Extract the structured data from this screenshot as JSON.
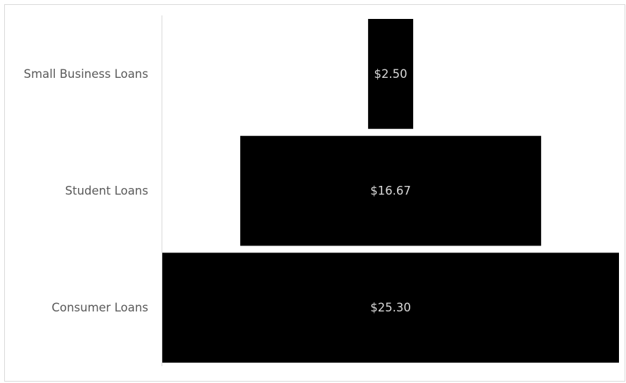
{
  "chart_data": {
    "type": "bar",
    "orientation": "horizontal",
    "style": "funnel",
    "categories": [
      "Small Business Loans",
      "Student Loans",
      "Consumer Loans"
    ],
    "values": [
      2.5,
      16.67,
      25.3
    ],
    "data_labels": [
      "$2.50",
      "$16.67",
      "$25.30"
    ],
    "colors": {
      "bar": "#000000",
      "data_label": "#d9d9d9",
      "category_label": "#595959",
      "axis_line": "#d9d9d9",
      "frame": "#d9d9d9"
    },
    "grid": false,
    "legend": "none"
  }
}
